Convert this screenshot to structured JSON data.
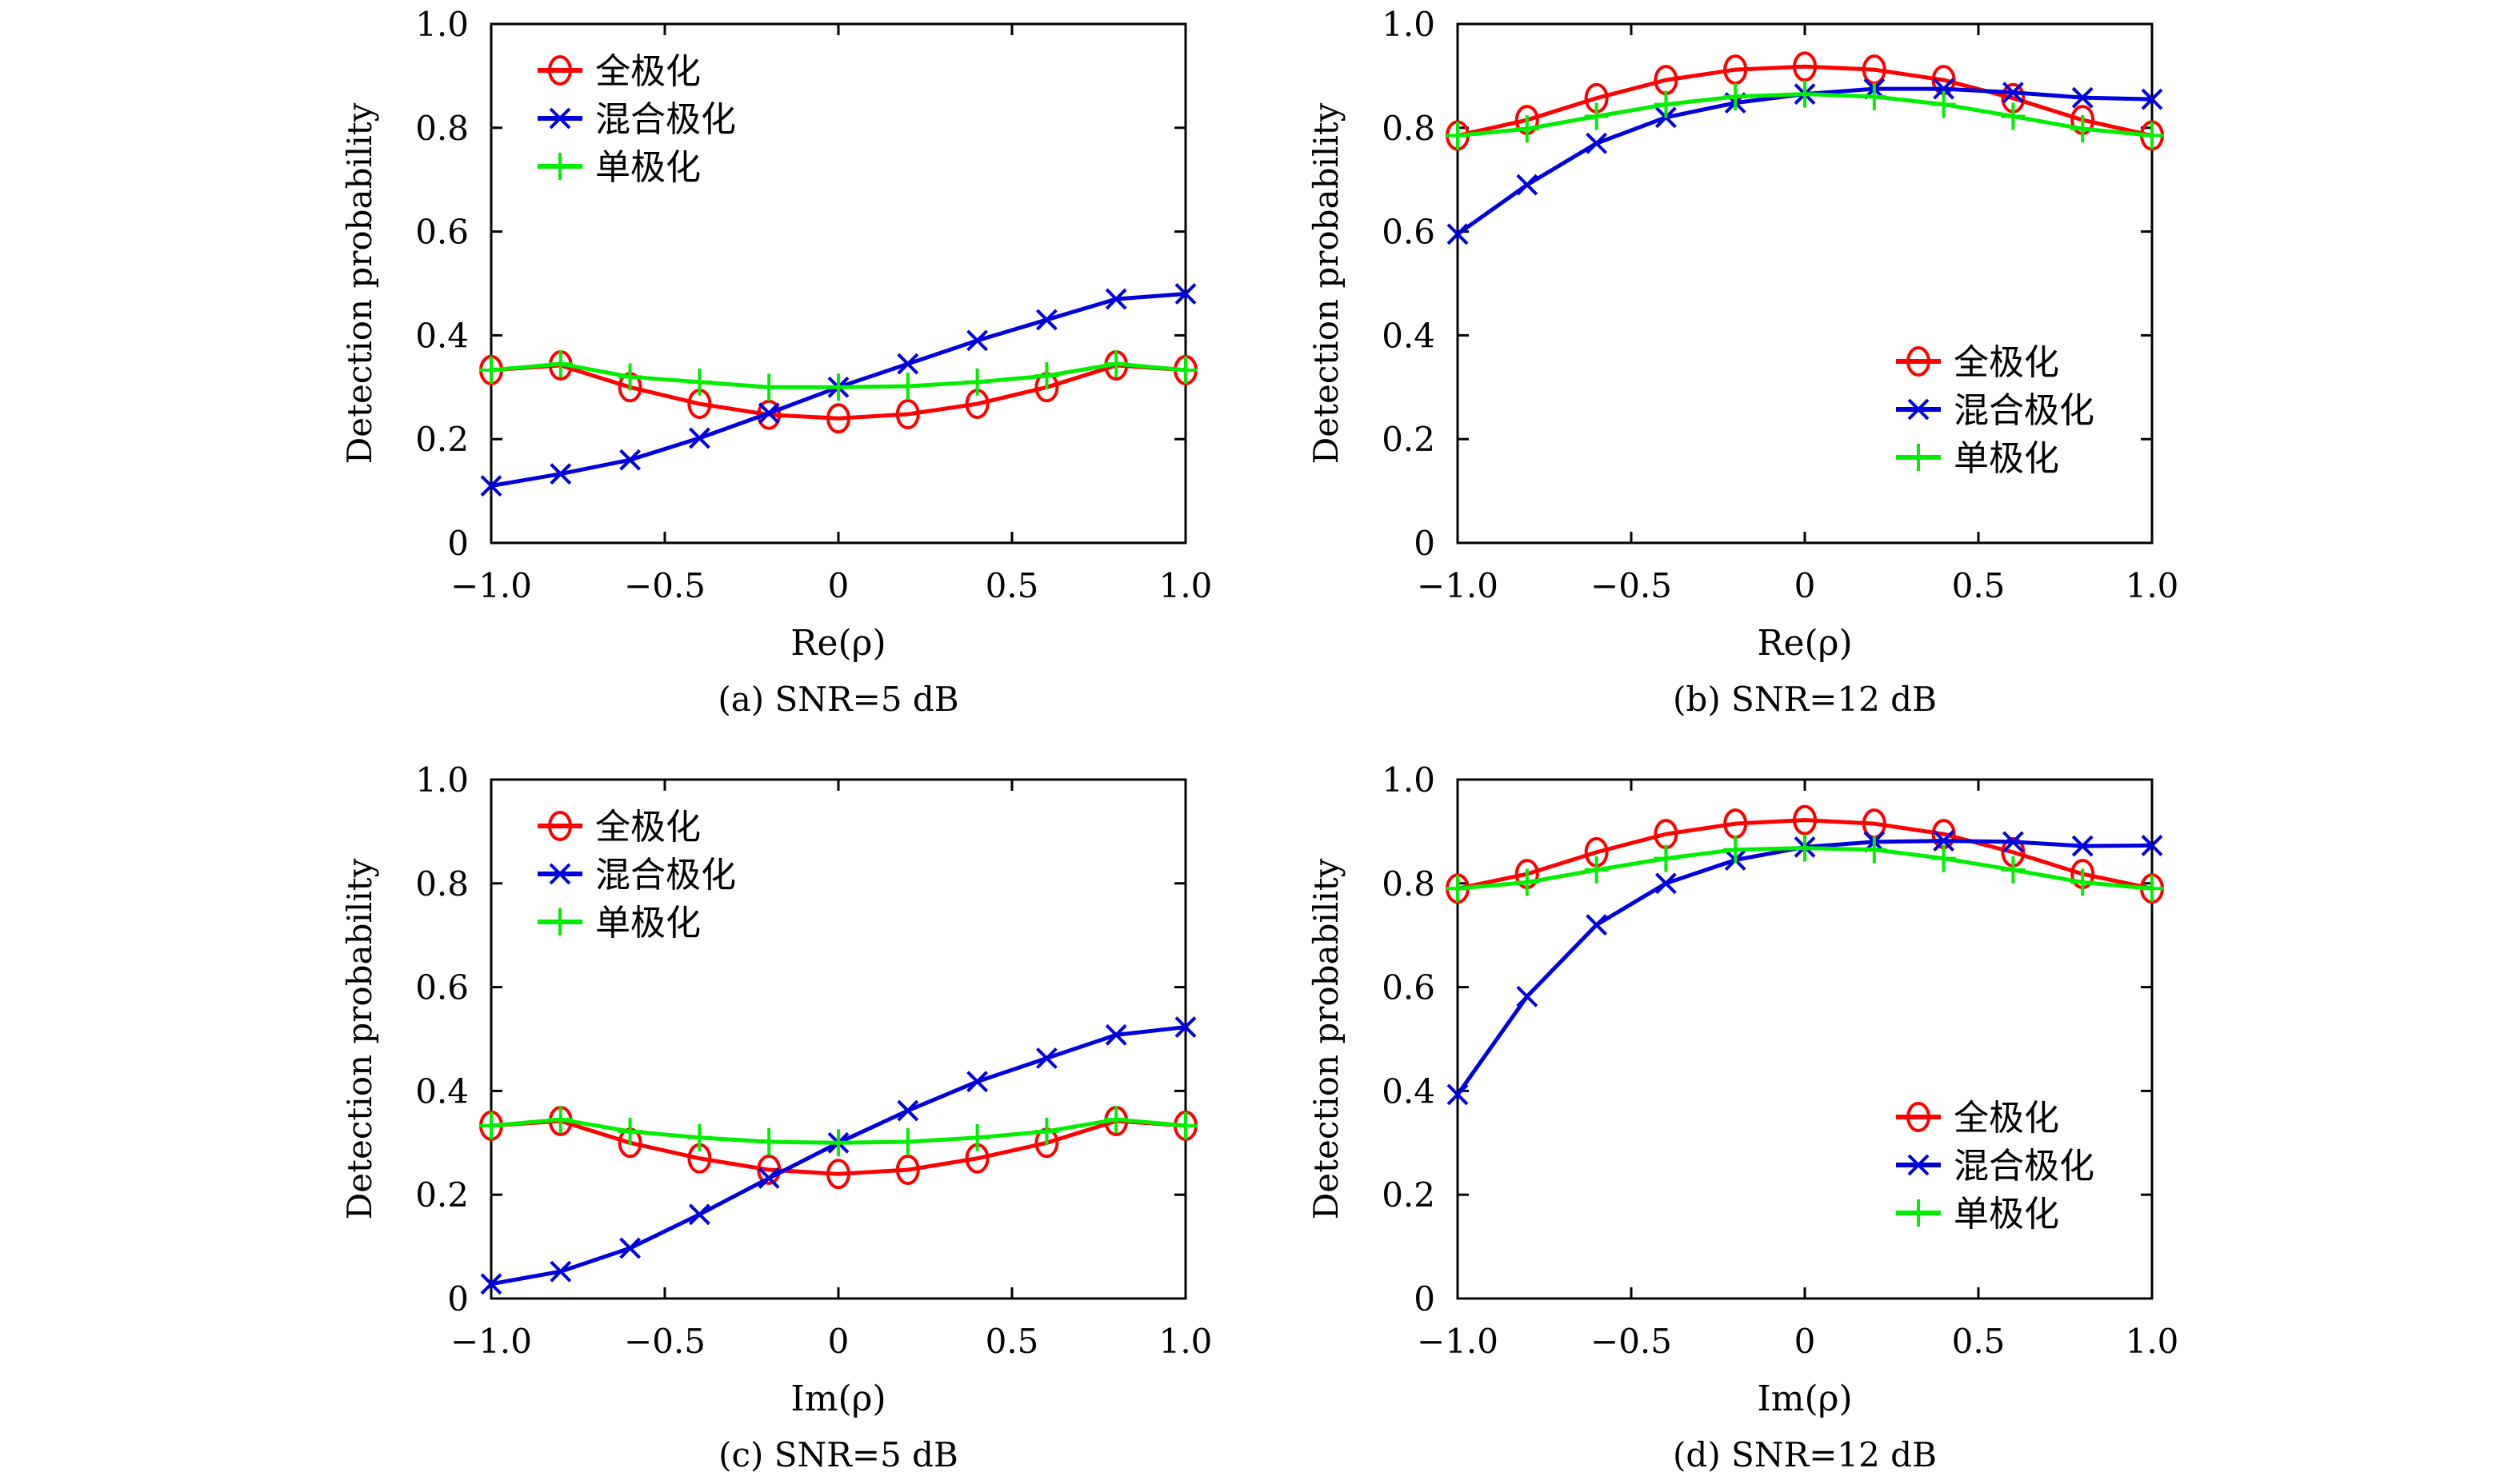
{
  "legend_labels": [
    "全极化",
    "混合极化",
    "单极化"
  ],
  "colors": {
    "full": "#ff0000",
    "mixed": "#0000dd",
    "single": "#00ee00"
  },
  "chart_data": [
    {
      "type": "line",
      "caption": "(a) SNR=5 dB",
      "xlabel": "Re(ρ)",
      "ylabel": "Detection probability",
      "xlim": [
        -1,
        1
      ],
      "ylim": [
        0,
        1
      ],
      "xticks": [
        "−1.0",
        "−0.5",
        "0",
        "0.5",
        "1.0"
      ],
      "yticks": [
        "0",
        "0.2",
        "0.4",
        "0.6",
        "0.8",
        "1.0"
      ],
      "legend_position": "top-left",
      "x": [
        -1.0,
        -0.8,
        -0.6,
        -0.4,
        -0.2,
        0,
        0.2,
        0.4,
        0.6,
        0.8,
        1.0
      ],
      "series": [
        {
          "name": "全极化",
          "marker": "circle",
          "values": [
            0.333,
            0.342,
            0.3,
            0.268,
            0.247,
            0.24,
            0.248,
            0.268,
            0.3,
            0.342,
            0.333
          ]
        },
        {
          "name": "混合极化",
          "marker": "x",
          "values": [
            0.11,
            0.133,
            0.16,
            0.202,
            0.25,
            0.3,
            0.345,
            0.39,
            0.43,
            0.47,
            0.48
          ]
        },
        {
          "name": "单极化",
          "marker": "plus",
          "values": [
            0.333,
            0.345,
            0.32,
            0.31,
            0.3,
            0.3,
            0.302,
            0.31,
            0.322,
            0.345,
            0.333
          ]
        }
      ]
    },
    {
      "type": "line",
      "caption": "(b) SNR=12 dB",
      "xlabel": "Re(ρ)",
      "ylabel": "Detection probability",
      "xlim": [
        -1,
        1
      ],
      "ylim": [
        0,
        1
      ],
      "xticks": [
        "−1.0",
        "−0.5",
        "0",
        "0.5",
        "1.0"
      ],
      "yticks": [
        "0",
        "0.2",
        "0.4",
        "0.6",
        "0.8",
        "1.0"
      ],
      "legend_position": "bottom-right",
      "x": [
        -1.0,
        -0.8,
        -0.6,
        -0.4,
        -0.2,
        0,
        0.2,
        0.4,
        0.6,
        0.8,
        1.0
      ],
      "series": [
        {
          "name": "全极化",
          "marker": "circle",
          "values": [
            0.785,
            0.815,
            0.857,
            0.892,
            0.912,
            0.918,
            0.912,
            0.892,
            0.857,
            0.815,
            0.785
          ]
        },
        {
          "name": "混合极化",
          "marker": "x",
          "values": [
            0.595,
            0.69,
            0.77,
            0.82,
            0.848,
            0.865,
            0.875,
            0.875,
            0.868,
            0.858,
            0.855
          ]
        },
        {
          "name": "单极化",
          "marker": "plus",
          "values": [
            0.785,
            0.798,
            0.822,
            0.845,
            0.86,
            0.865,
            0.86,
            0.845,
            0.822,
            0.798,
            0.785
          ]
        }
      ]
    },
    {
      "type": "line",
      "caption": "(c) SNR=5 dB",
      "xlabel": "Im(ρ)",
      "ylabel": "Detection probability",
      "xlim": [
        -1,
        1
      ],
      "ylim": [
        0,
        1
      ],
      "xticks": [
        "−1.0",
        "−0.5",
        "0",
        "0.5",
        "1.0"
      ],
      "yticks": [
        "0",
        "0.2",
        "0.4",
        "0.6",
        "0.8",
        "1.0"
      ],
      "legend_position": "top-left",
      "x": [
        -1.0,
        -0.8,
        -0.6,
        -0.4,
        -0.2,
        0,
        0.2,
        0.4,
        0.6,
        0.8,
        1.0
      ],
      "series": [
        {
          "name": "全极化",
          "marker": "circle",
          "values": [
            0.333,
            0.342,
            0.3,
            0.27,
            0.248,
            0.24,
            0.248,
            0.27,
            0.3,
            0.342,
            0.333
          ]
        },
        {
          "name": "混合极化",
          "marker": "x",
          "values": [
            0.028,
            0.052,
            0.097,
            0.162,
            0.232,
            0.3,
            0.362,
            0.418,
            0.463,
            0.508,
            0.523
          ]
        },
        {
          "name": "单极化",
          "marker": "plus",
          "values": [
            0.333,
            0.345,
            0.322,
            0.31,
            0.302,
            0.3,
            0.302,
            0.31,
            0.322,
            0.345,
            0.333
          ]
        }
      ]
    },
    {
      "type": "line",
      "caption": "(d) SNR=12 dB",
      "xlabel": "Im(ρ)",
      "ylabel": "Detection probability",
      "xlim": [
        -1,
        1
      ],
      "ylim": [
        0,
        1
      ],
      "xticks": [
        "−1.0",
        "−0.5",
        "0",
        "0.5",
        "1.0"
      ],
      "yticks": [
        "0",
        "0.2",
        "0.4",
        "0.6",
        "0.8",
        "1.0"
      ],
      "legend_position": "bottom-right",
      "x": [
        -1.0,
        -0.8,
        -0.6,
        -0.4,
        -0.2,
        0,
        0.2,
        0.4,
        0.6,
        0.8,
        1.0
      ],
      "series": [
        {
          "name": "全极化",
          "marker": "circle",
          "values": [
            0.79,
            0.818,
            0.86,
            0.895,
            0.915,
            0.922,
            0.915,
            0.895,
            0.86,
            0.818,
            0.79
          ]
        },
        {
          "name": "混合极化",
          "marker": "x",
          "values": [
            0.393,
            0.582,
            0.72,
            0.8,
            0.845,
            0.87,
            0.88,
            0.882,
            0.88,
            0.872,
            0.873
          ]
        },
        {
          "name": "单极化",
          "marker": "plus",
          "values": [
            0.79,
            0.802,
            0.826,
            0.848,
            0.865,
            0.868,
            0.865,
            0.848,
            0.826,
            0.802,
            0.79
          ]
        }
      ]
    }
  ]
}
